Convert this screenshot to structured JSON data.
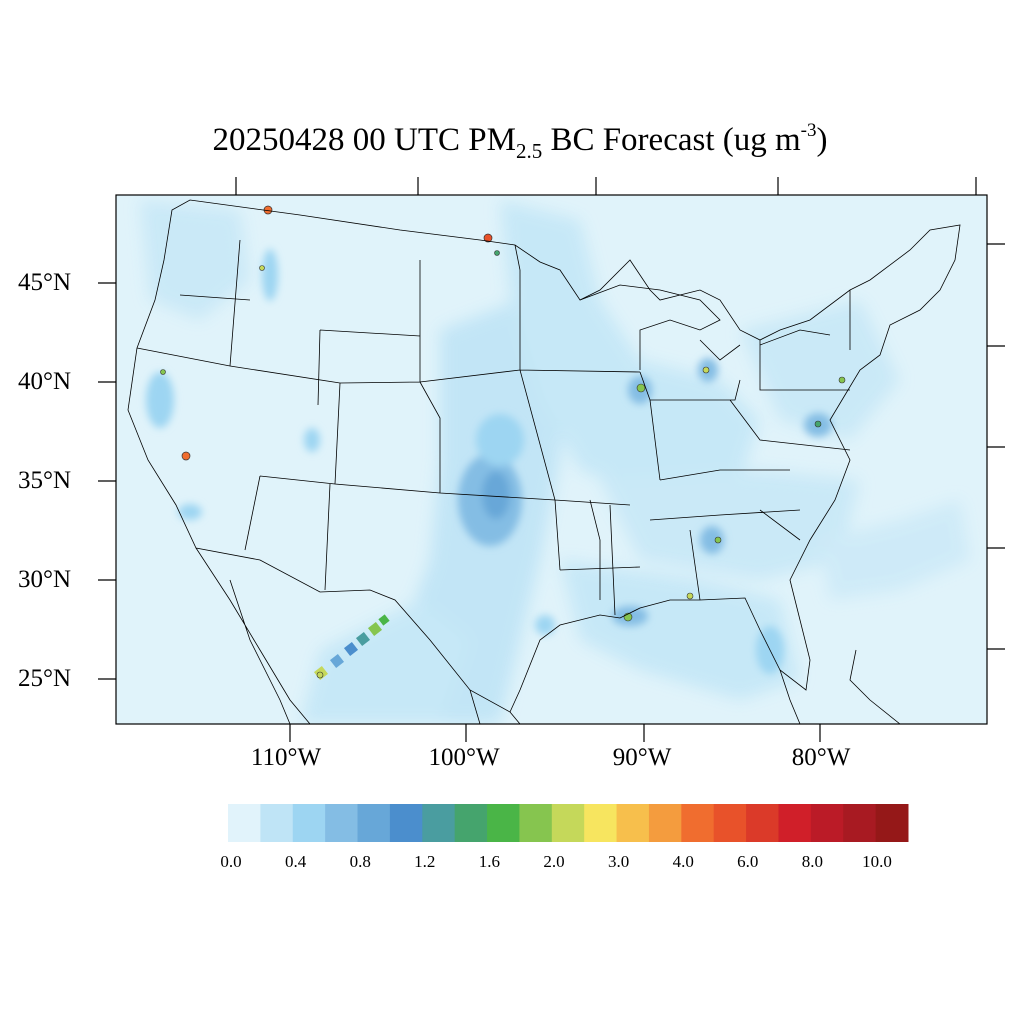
{
  "title": {
    "prefix": "20250428 00 UTC PM",
    "subscript": "2.5",
    "middle": " BC Forecast (ug m",
    "superscript": "-3",
    "suffix": ")"
  },
  "map": {
    "lat_labels": [
      "45°N",
      "40°N",
      "35°N",
      "30°N",
      "25°N"
    ],
    "lon_labels": [
      "110°W",
      "100°W",
      "90°W",
      "80°W"
    ],
    "background_color": "#e0f3fa",
    "boundary_color": "#000000"
  },
  "colorbar": {
    "colors": [
      "#e1f3fb",
      "#bfe4f6",
      "#9dd5f2",
      "#84bde4",
      "#67a7d8",
      "#4b8ecd",
      "#4a9da0",
      "#45a46d",
      "#4ab547",
      "#86c54f",
      "#c5d85a",
      "#f7e55f",
      "#f7bf4c",
      "#f49c3e",
      "#f06d2f",
      "#e8522a",
      "#db3a29",
      "#d01f29",
      "#bb1b27",
      "#a81a22",
      "#951818"
    ],
    "labels": [
      "0.0",
      "0.4",
      "0.8",
      "1.2",
      "1.6",
      "2.0",
      "3.0",
      "4.0",
      "6.0",
      "8.0",
      "10.0"
    ]
  }
}
